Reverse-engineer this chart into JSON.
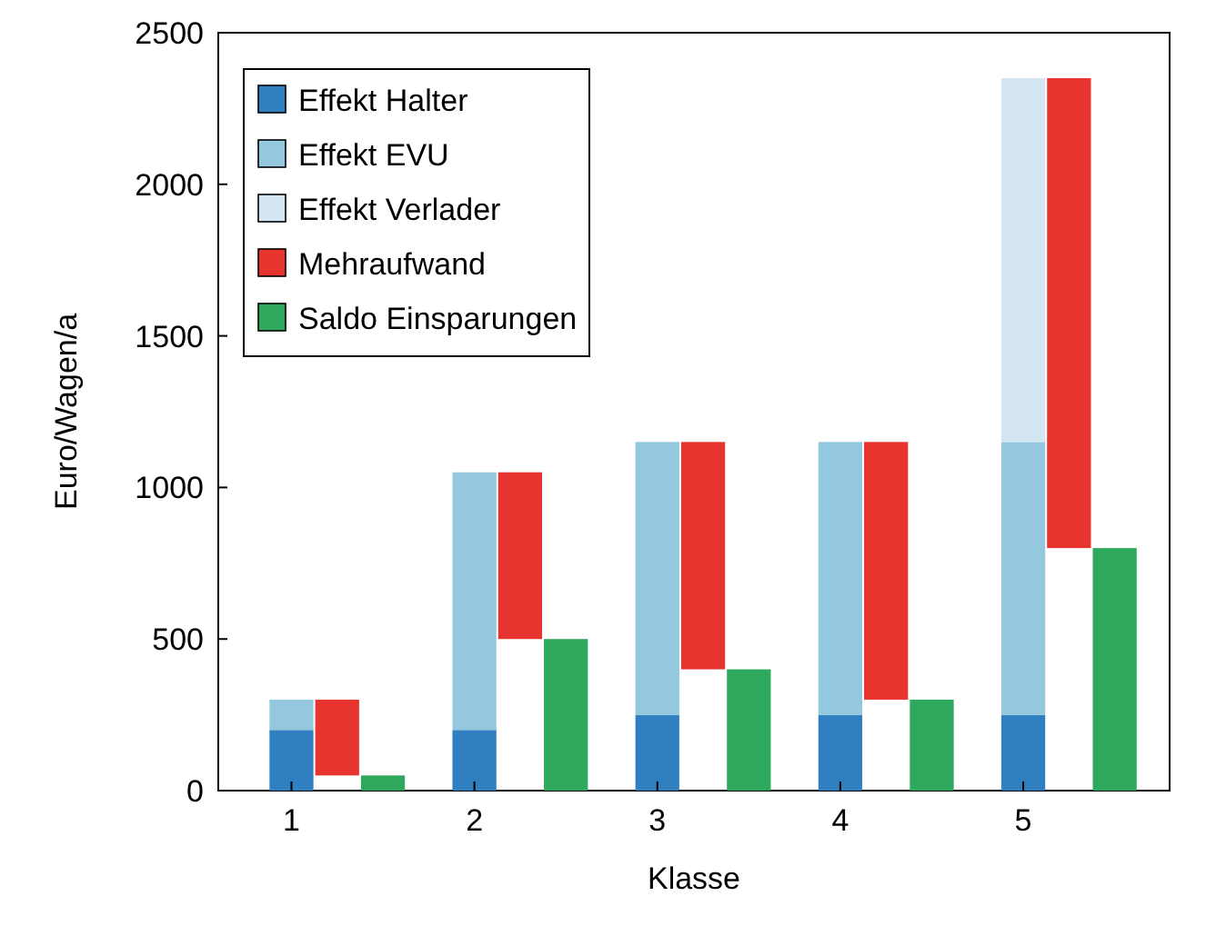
{
  "chart_data": {
    "type": "bar",
    "xlabel": "Klasse",
    "ylabel": "Euro/Wagen/a",
    "legend": "top left",
    "grid": false,
    "xlim": [
      0.6,
      5.8
    ],
    "xticks": [
      1,
      2,
      3,
      4,
      5
    ],
    "ylim": [
      0,
      2500
    ],
    "yticks": [
      0,
      500,
      1000,
      1500,
      2000,
      2500
    ],
    "series": [
      {
        "name": "Effekt Halter",
        "color": "#2f7fc1",
        "x": [
          1,
          2,
          3,
          4,
          5
        ],
        "base": [
          0,
          0,
          0,
          0,
          0
        ],
        "values": [
          200,
          200,
          250,
          250,
          250
        ]
      },
      {
        "name": "Effekt EVU",
        "color": "#93c8de",
        "x": [
          1,
          2,
          3,
          4,
          5
        ],
        "base": [
          200,
          200,
          250,
          250,
          250
        ],
        "values": [
          100,
          850,
          900,
          900,
          900
        ]
      },
      {
        "name": "Effekt Verlader",
        "color": "#d4e6f1",
        "x": [
          5
        ],
        "base": [
          1150
        ],
        "values": [
          1200
        ]
      },
      {
        "name": "Mehraufwand",
        "color": "#e8342e",
        "x": [
          1.25,
          2.25,
          3.25,
          4.25,
          5.25
        ],
        "base": [
          50,
          500,
          400,
          300,
          800
        ],
        "values": [
          250,
          550,
          750,
          850,
          1550
        ]
      },
      {
        "name": "Saldo Einsparungen",
        "color": "#2ea85c",
        "x": [
          1.5,
          2.5,
          3.5,
          4.5,
          5.5
        ],
        "values": [
          50,
          500,
          400,
          300,
          800
        ]
      }
    ]
  }
}
